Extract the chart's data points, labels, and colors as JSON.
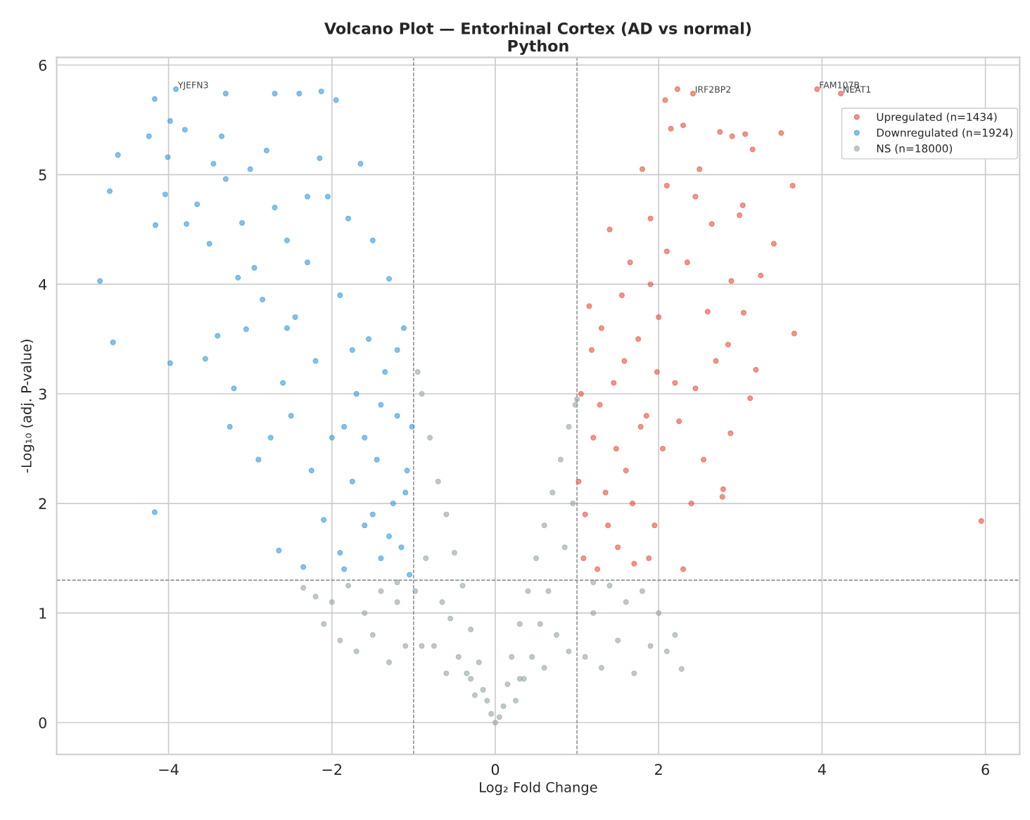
{
  "chart_data": {
    "type": "scatter",
    "title": "Volcano Plot — Entorhinal Cortex (AD vs normal)",
    "subtitle": "Python",
    "xlabel": "Log₂ Fold Change",
    "ylabel": "-Log₁₀ (adj. P-value)",
    "xlim": [
      -5.37,
      6.42
    ],
    "ylim": [
      -0.29,
      6.07
    ],
    "xticks": [
      -4,
      -2,
      0,
      2,
      4,
      6
    ],
    "yticks": [
      0,
      1,
      2,
      3,
      4,
      5,
      6
    ],
    "grid": true,
    "legend": "top right",
    "marker": "circle",
    "ref_lines": [
      {
        "axis": "x",
        "value": -1,
        "color": "#808080",
        "line_style": "dashed"
      },
      {
        "axis": "x",
        "value": 1,
        "color": "#808080",
        "line_style": "dashed"
      },
      {
        "axis": "y",
        "value": 1.3,
        "color": "#808080",
        "line_style": "dashed"
      }
    ],
    "series": [
      {
        "name": "Upregulated (n=1434)",
        "color": "#e74c3c",
        "x": [
          5.95,
          3.66,
          3.64,
          3.5,
          3.41,
          3.25,
          3.19,
          3.12,
          3.15,
          3.06,
          3.03,
          2.99,
          3.04,
          2.89,
          2.88,
          2.78,
          2.79,
          3.94,
          4.23,
          2.42,
          2.23,
          2.08,
          2.15,
          2.3,
          2.5,
          2.75,
          2.9,
          2.45,
          2.65,
          2.7,
          2.55,
          2.6,
          2.4,
          2.35,
          2.3,
          2.2,
          2.1,
          2.05,
          2.0,
          1.95,
          1.9,
          1.85,
          1.8,
          1.75,
          1.7,
          1.65,
          1.6,
          1.55,
          1.5,
          1.45,
          1.4,
          1.35,
          1.3,
          1.25,
          1.2,
          1.15,
          1.1,
          1.05,
          1.02,
          1.08,
          1.18,
          1.28,
          1.38,
          1.48,
          1.58,
          1.68,
          1.78,
          1.88,
          1.98,
          2.25,
          2.85,
          2.45,
          2.1,
          1.9
        ],
        "values": [
          1.84,
          3.55,
          4.9,
          5.38,
          4.37,
          4.08,
          3.22,
          2.96,
          5.23,
          5.37,
          4.72,
          4.63,
          3.74,
          4.03,
          2.64,
          2.06,
          2.13,
          5.78,
          5.74,
          5.74,
          5.78,
          5.68,
          5.42,
          5.45,
          5.05,
          5.39,
          5.35,
          4.8,
          4.55,
          3.3,
          2.4,
          3.75,
          2.0,
          4.2,
          1.4,
          3.1,
          4.9,
          2.5,
          3.7,
          1.8,
          4.6,
          2.8,
          5.05,
          3.5,
          1.45,
          4.2,
          2.3,
          3.9,
          1.6,
          3.1,
          4.5,
          2.1,
          3.6,
          1.4,
          2.6,
          3.8,
          1.9,
          3.0,
          2.2,
          1.5,
          3.4,
          2.9,
          1.8,
          2.5,
          3.3,
          2.0,
          2.7,
          1.5,
          3.2,
          2.75,
          3.45,
          3.05,
          4.3,
          4.0
        ]
      },
      {
        "name": "Downregulated (n=1924)",
        "color": "#3498db",
        "x": [
          -4.84,
          -4.72,
          -4.68,
          -4.62,
          -4.17,
          -3.98,
          -4.17,
          -4.24,
          -4.01,
          -3.98,
          -4.04,
          -4.16,
          -3.91,
          -3.8,
          -3.78,
          -3.65,
          -3.55,
          -3.5,
          -3.45,
          -3.4,
          -3.35,
          -3.3,
          -3.25,
          -3.2,
          -3.15,
          -3.1,
          -3.05,
          -3.0,
          -2.95,
          -2.9,
          -2.85,
          -2.8,
          -2.75,
          -2.7,
          -2.65,
          -2.6,
          -2.55,
          -2.5,
          -2.45,
          -2.4,
          -2.35,
          -2.3,
          -2.25,
          -2.2,
          -2.15,
          -2.1,
          -2.05,
          -2.0,
          -1.95,
          -1.9,
          -1.85,
          -1.8,
          -1.75,
          -1.7,
          -1.65,
          -1.6,
          -1.55,
          -1.5,
          -1.45,
          -1.4,
          -1.35,
          -1.3,
          -1.25,
          -1.2,
          -1.15,
          -1.12,
          -1.08,
          -1.05,
          -1.02,
          -1.6,
          -1.5,
          -1.4,
          -1.3,
          -1.2,
          -1.1,
          -1.75,
          -1.85,
          -2.3,
          -2.55,
          -3.3,
          -2.7,
          -1.9,
          -2.13
        ],
        "values": [
          4.03,
          4.85,
          3.47,
          5.18,
          1.92,
          3.28,
          5.69,
          5.35,
          5.16,
          5.49,
          4.82,
          4.54,
          5.78,
          5.41,
          4.55,
          4.73,
          3.32,
          4.37,
          5.1,
          3.53,
          5.35,
          4.96,
          2.7,
          3.05,
          4.06,
          4.56,
          3.59,
          5.05,
          4.15,
          2.4,
          3.86,
          5.22,
          2.6,
          4.7,
          1.57,
          3.1,
          4.4,
          2.8,
          3.7,
          5.74,
          1.42,
          4.2,
          2.3,
          3.3,
          5.15,
          1.85,
          4.8,
          2.6,
          5.68,
          3.9,
          1.4,
          4.6,
          2.2,
          3.0,
          5.1,
          1.8,
          3.5,
          4.4,
          2.4,
          1.5,
          3.2,
          4.05,
          2.0,
          2.8,
          1.6,
          3.6,
          2.3,
          1.35,
          2.7,
          2.6,
          1.9,
          2.9,
          1.7,
          3.4,
          2.1,
          3.4,
          2.7,
          4.8,
          3.6,
          5.74,
          5.74,
          1.55,
          5.76
        ]
      },
      {
        "name": "NS (n=18000)",
        "color": "#95a5a6",
        "x": [
          0,
          0.05,
          -0.05,
          0.1,
          -0.1,
          0.15,
          -0.15,
          0.2,
          -0.2,
          0.25,
          -0.25,
          0.3,
          -0.3,
          0.35,
          -0.35,
          0.4,
          -0.4,
          0.45,
          -0.45,
          0.5,
          -0.5,
          0.55,
          -0.55,
          0.6,
          -0.6,
          0.65,
          -0.65,
          0.7,
          -0.7,
          0.75,
          -0.75,
          0.8,
          -0.8,
          0.85,
          -0.85,
          0.9,
          -0.9,
          0.95,
          -0.95,
          0.98,
          -0.98,
          1.0,
          1.1,
          -1.1,
          1.2,
          -1.2,
          1.3,
          -1.3,
          1.4,
          -1.4,
          1.5,
          -1.5,
          1.6,
          -1.6,
          1.7,
          -1.7,
          1.8,
          -1.8,
          1.9,
          -1.9,
          2.0,
          -2.0,
          2.1,
          -2.1,
          2.2,
          -2.2,
          2.28,
          -2.35,
          0.6,
          -0.6,
          0.9,
          -0.9,
          1.2,
          -1.2,
          0.3,
          -0.3
        ],
        "values": [
          0,
          0.05,
          0.08,
          0.15,
          0.2,
          0.35,
          0.3,
          0.6,
          0.55,
          0.2,
          0.25,
          0.9,
          0.85,
          0.4,
          0.45,
          1.2,
          1.25,
          0.6,
          0.6,
          1.5,
          1.55,
          0.9,
          0.95,
          1.8,
          1.9,
          1.2,
          1.1,
          2.1,
          2.2,
          0.8,
          0.7,
          2.4,
          2.6,
          1.6,
          1.5,
          2.7,
          3.0,
          2.0,
          3.2,
          2.9,
          1.2,
          2.95,
          0.6,
          0.7,
          1.0,
          1.1,
          0.5,
          0.55,
          1.25,
          1.2,
          0.75,
          0.8,
          1.1,
          1.0,
          0.45,
          0.65,
          1.2,
          1.25,
          0.7,
          0.75,
          1.0,
          1.1,
          0.65,
          0.9,
          0.8,
          1.15,
          0.49,
          1.23,
          0.5,
          0.45,
          0.65,
          0.7,
          1.28,
          1.28,
          0.4,
          0.4
        ]
      }
    ],
    "annotations": [
      {
        "text": "YJEFN3",
        "x": -3.91,
        "y": 5.78
      },
      {
        "text": "IRF2BP2",
        "x": 2.42,
        "y": 5.74
      },
      {
        "text": "FAM107B",
        "x": 3.94,
        "y": 5.78
      },
      {
        "text": "NEAT1",
        "x": 4.23,
        "y": 5.74
      }
    ]
  }
}
